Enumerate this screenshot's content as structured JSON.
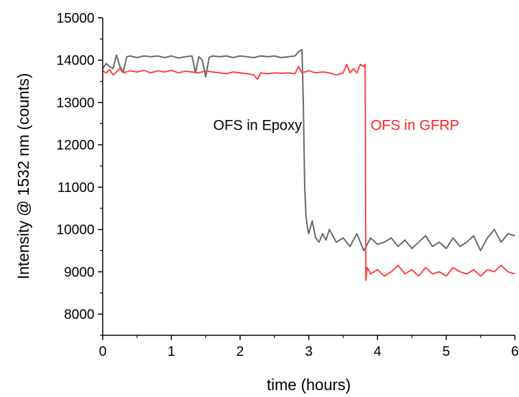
{
  "chart_data": {
    "type": "line",
    "title": "",
    "xlabel": "time (hours)",
    "ylabel": "Intensity @ 1532 nm (counts)",
    "xlim": [
      0,
      6
    ],
    "ylim": [
      7500,
      15000
    ],
    "xticks": [
      0,
      1,
      2,
      3,
      4,
      5,
      6
    ],
    "yticks": [
      8000,
      9000,
      10000,
      11000,
      12000,
      13000,
      14000,
      15000
    ],
    "grid": false,
    "legend": "none",
    "series": [
      {
        "color": "#666666",
        "x": [
          0.0,
          0.05,
          0.1,
          0.15,
          0.2,
          0.25,
          0.3,
          0.35,
          0.4,
          0.5,
          0.6,
          0.7,
          0.8,
          0.9,
          1.0,
          1.1,
          1.2,
          1.3,
          1.35,
          1.4,
          1.45,
          1.5,
          1.55,
          1.6,
          1.7,
          1.8,
          1.9,
          2.0,
          2.1,
          2.2,
          2.3,
          2.4,
          2.5,
          2.6,
          2.7,
          2.8,
          2.85,
          2.9,
          2.92,
          2.94,
          2.96,
          2.98,
          3.0,
          3.05,
          3.1,
          3.15,
          3.2,
          3.25,
          3.3,
          3.4,
          3.5,
          3.6,
          3.7,
          3.8,
          3.9,
          4.0,
          4.1,
          4.2,
          4.3,
          4.4,
          4.5,
          4.6,
          4.7,
          4.8,
          4.9,
          5.0,
          5.1,
          5.2,
          5.3,
          5.4,
          5.5,
          5.6,
          5.7,
          5.8,
          5.9,
          6.0
        ],
        "y": [
          13800,
          13920,
          13850,
          13800,
          14120,
          13850,
          13720,
          14080,
          14100,
          14060,
          14100,
          14080,
          14100,
          14060,
          14100,
          14050,
          14080,
          14100,
          13700,
          14080,
          14000,
          13600,
          14070,
          14100,
          14080,
          14100,
          14060,
          14100,
          14080,
          14060,
          14100,
          14080,
          14100,
          14060,
          14080,
          14100,
          14200,
          14250,
          13000,
          11000,
          10300,
          10050,
          9900,
          10200,
          9800,
          9700,
          9900,
          9750,
          10000,
          9700,
          9800,
          9600,
          9900,
          9500,
          9800,
          9650,
          9700,
          9800,
          9600,
          9750,
          9550,
          9700,
          9850,
          9600,
          9700,
          9550,
          9800,
          9600,
          9700,
          9850,
          9500,
          9800,
          10000,
          9700,
          9900,
          9850
        ]
      },
      {
        "color": "#ff4040",
        "x": [
          0.0,
          0.05,
          0.1,
          0.15,
          0.2,
          0.25,
          0.3,
          0.4,
          0.5,
          0.6,
          0.7,
          0.8,
          0.9,
          1.0,
          1.1,
          1.2,
          1.3,
          1.4,
          1.5,
          1.6,
          1.7,
          1.8,
          1.9,
          2.0,
          2.1,
          2.2,
          2.25,
          2.3,
          2.4,
          2.5,
          2.6,
          2.7,
          2.8,
          2.85,
          2.9,
          3.0,
          3.1,
          3.2,
          3.3,
          3.4,
          3.5,
          3.55,
          3.6,
          3.65,
          3.7,
          3.75,
          3.8,
          3.82,
          3.83,
          3.85,
          3.9,
          4.0,
          4.1,
          4.2,
          4.3,
          4.4,
          4.5,
          4.6,
          4.7,
          4.8,
          4.9,
          5.0,
          5.1,
          5.2,
          5.3,
          5.4,
          5.5,
          5.6,
          5.7,
          5.8,
          5.9,
          6.0
        ],
        "y": [
          13750,
          13700,
          13780,
          13650,
          13720,
          13800,
          13700,
          13750,
          13720,
          13760,
          13700,
          13750,
          13720,
          13760,
          13700,
          13740,
          13720,
          13700,
          13750,
          13720,
          13700,
          13680,
          13720,
          13700,
          13680,
          13650,
          13550,
          13700,
          13680,
          13700,
          13690,
          13700,
          13680,
          13850,
          13700,
          13750,
          13700,
          13720,
          13700,
          13650,
          13700,
          13900,
          13700,
          13800,
          13700,
          13900,
          13850,
          13900,
          8800,
          9100,
          8950,
          9050,
          8900,
          9000,
          9150,
          8950,
          9050,
          8900,
          9100,
          8950,
          9000,
          8900,
          9100,
          9000,
          8950,
          9050,
          8900,
          9050,
          9000,
          9150,
          9000,
          8950
        ]
      }
    ],
    "annotations": [
      {
        "text": "OFS in Epoxy",
        "x": 2.9,
        "y": 12350,
        "anchor": "end",
        "color": "#000000"
      },
      {
        "text": "OFS in GFRP",
        "x": 3.9,
        "y": 12350,
        "anchor": "start",
        "color": "#ff2020"
      }
    ]
  }
}
